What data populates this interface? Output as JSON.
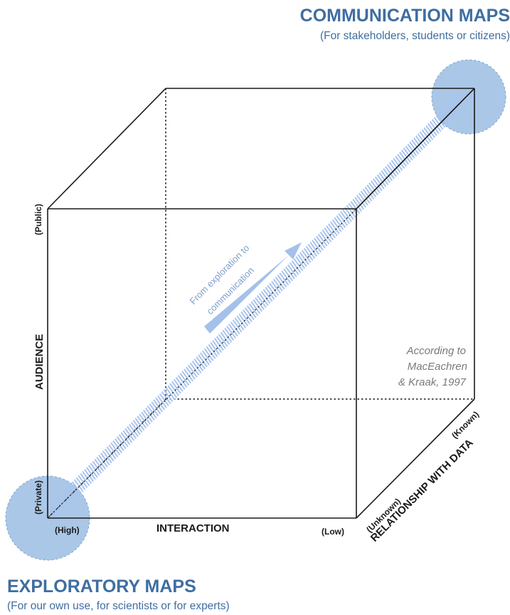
{
  "top_group": {
    "title": "COMMUNICATION MAPS",
    "subtitle": "(For stakeholders, students or citizens)"
  },
  "bottom_group": {
    "title": "EXPLORATORY MAPS",
    "subtitle": "(For our own use, for scientists or for experts)"
  },
  "axes": {
    "audience": {
      "label": "AUDIENCE",
      "low": "(Private)",
      "high": "(Public)"
    },
    "interaction": {
      "label": "INTERACTION",
      "start": "(High)",
      "end": "(Low)"
    },
    "relationship": {
      "label": "RELATIONSHIP WITH DATA",
      "start": "(Unknown)",
      "end": "(Known)"
    }
  },
  "arrow_label": {
    "line1": "From exploration to",
    "line2": "communication"
  },
  "citation": {
    "line1": "According to",
    "line2": "MacEachren",
    "line3": "& Kraak, 1997"
  },
  "colors": {
    "accent": "#3f6ea0",
    "circle": "#9bbde3",
    "hatch": "#a9c4ec",
    "arrow": "#a5c1ea",
    "line": "#1a1a1a",
    "citation": "#7a7a7a"
  }
}
